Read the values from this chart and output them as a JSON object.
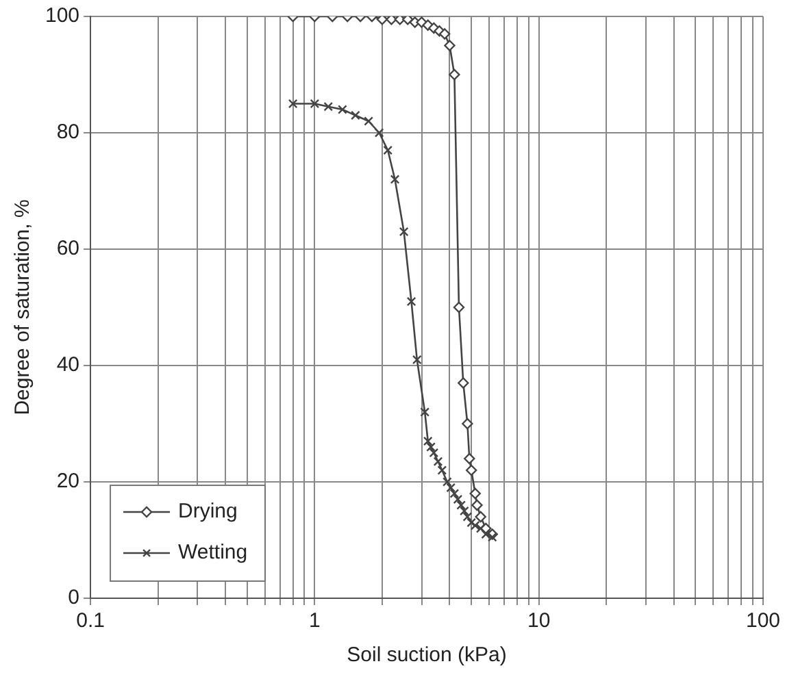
{
  "chart_data": {
    "type": "line",
    "xlabel": "Soil suction (kPa)",
    "ylabel": "Degree of saturation, %",
    "log": "x",
    "xlim": [
      0.1,
      100
    ],
    "xticks": [
      {
        "value": 0.1,
        "label": "0.1"
      },
      {
        "value": 0.2,
        "label": null
      },
      {
        "value": 0.3,
        "label": null
      },
      {
        "value": 0.4,
        "label": null
      },
      {
        "value": 0.5,
        "label": null
      },
      {
        "value": 0.6,
        "label": null
      },
      {
        "value": 0.7,
        "label": null
      },
      {
        "value": 0.8,
        "label": null
      },
      {
        "value": 0.9,
        "label": null
      },
      {
        "value": 1,
        "label": "1"
      },
      {
        "value": 2,
        "label": null
      },
      {
        "value": 3,
        "label": null
      },
      {
        "value": 4,
        "label": null
      },
      {
        "value": 5,
        "label": null
      },
      {
        "value": 6,
        "label": null
      },
      {
        "value": 7,
        "label": null
      },
      {
        "value": 8,
        "label": null
      },
      {
        "value": 9,
        "label": null
      },
      {
        "value": 10,
        "label": "10"
      },
      {
        "value": 20,
        "label": null
      },
      {
        "value": 30,
        "label": null
      },
      {
        "value": 40,
        "label": null
      },
      {
        "value": 50,
        "label": null
      },
      {
        "value": 60,
        "label": null
      },
      {
        "value": 70,
        "label": null
      },
      {
        "value": 80,
        "label": null
      },
      {
        "value": 90,
        "label": null
      },
      {
        "value": 100,
        "label": "100"
      }
    ],
    "ylim": [
      0,
      100
    ],
    "yticks": [
      0,
      20,
      40,
      60,
      80,
      100
    ],
    "grid": true,
    "legend": "bottom left",
    "line_style": "solid",
    "series": [
      {
        "name": "Drying",
        "color": "#444444",
        "marker": "diamond",
        "x": [
          0.8,
          1,
          1.2,
          1.4,
          1.6,
          1.8,
          2,
          2.2,
          2.4,
          2.6,
          2.8,
          3,
          3.2,
          3.4,
          3.6,
          3.8,
          4,
          4.2,
          4.4,
          4.6,
          4.8,
          4.9,
          5,
          5.2,
          5.3,
          5.5,
          5.8,
          6.2
        ],
        "values": [
          100,
          100,
          100,
          100,
          100,
          100,
          99.5,
          99.5,
          99.5,
          99.5,
          99,
          99,
          98.5,
          98,
          97.5,
          97,
          95,
          90,
          50,
          37,
          30,
          24,
          22,
          18,
          16,
          14,
          12,
          11
        ]
      },
      {
        "name": "Wetting",
        "color": "#444444",
        "marker": "cross",
        "x": [
          0.8,
          1,
          1.15,
          1.33,
          1.52,
          1.74,
          1.94,
          2.12,
          2.28,
          2.5,
          2.7,
          2.86,
          3.1,
          3.2,
          3.3,
          3.4,
          3.55,
          3.7,
          3.9,
          4.05,
          4.2,
          4.35,
          4.5,
          4.65,
          4.8,
          5,
          5.2,
          5.5,
          5.8,
          6.2
        ],
        "values": [
          85,
          85,
          84.5,
          84,
          83,
          82,
          80,
          77,
          72,
          63,
          51,
          41,
          32,
          27,
          26,
          25,
          23.5,
          22,
          20,
          19,
          18,
          17,
          16,
          15,
          14,
          13,
          12.5,
          12,
          11,
          10.5
        ]
      }
    ]
  }
}
